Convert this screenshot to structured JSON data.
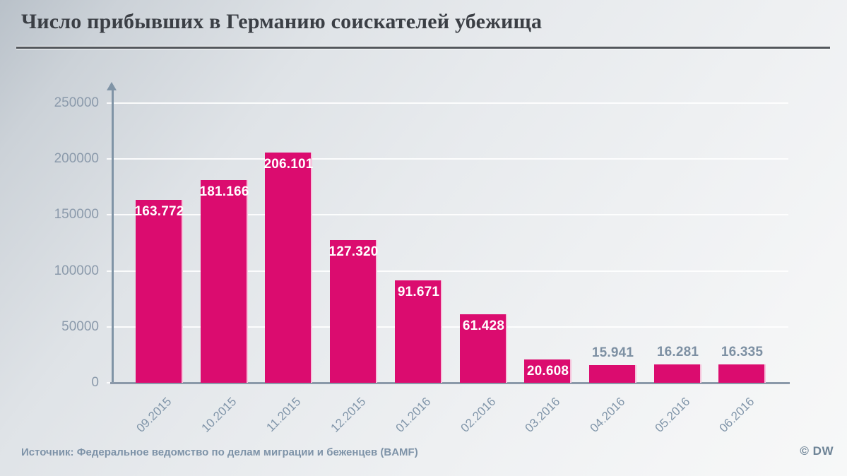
{
  "header": {
    "title": "Число прибывших в Германию соискателей убежища"
  },
  "footer": {
    "source": "Источник: Федеральное ведомство по делам миграции и беженцев (BAMF)",
    "credit": "© DW"
  },
  "chart_data": {
    "type": "bar",
    "title": "Число прибывших в Германию соискателей убежища",
    "categories": [
      "09.2015",
      "10.2015",
      "11.2015",
      "12.2015",
      "01.2016",
      "02.2016",
      "03.2016",
      "04.2016",
      "05.2016",
      "06.2016"
    ],
    "values": [
      163772,
      181166,
      206101,
      127320,
      91671,
      61428,
      20608,
      15941,
      16281,
      16335
    ],
    "value_labels": [
      "163.772",
      "181.166",
      "206.101",
      "127.320",
      "91.671",
      "61.428",
      "20.608",
      "15.941",
      "16.281",
      "16.335"
    ],
    "xlabel": "",
    "ylabel": "",
    "ylim": [
      0,
      250000
    ],
    "ytick_step": 50000,
    "ytick_labels": [
      "0",
      "50000",
      "100000",
      "150000",
      "200000",
      "250000"
    ],
    "grid": "horizontal-white-lines",
    "legend": "none",
    "bar_color": "#db0c6f",
    "value_label_color_inside": "#ffffff",
    "value_label_color_outside": "#7d90a3",
    "axis_color": "#8094a6",
    "tick_label_color": "#8b9aab"
  }
}
